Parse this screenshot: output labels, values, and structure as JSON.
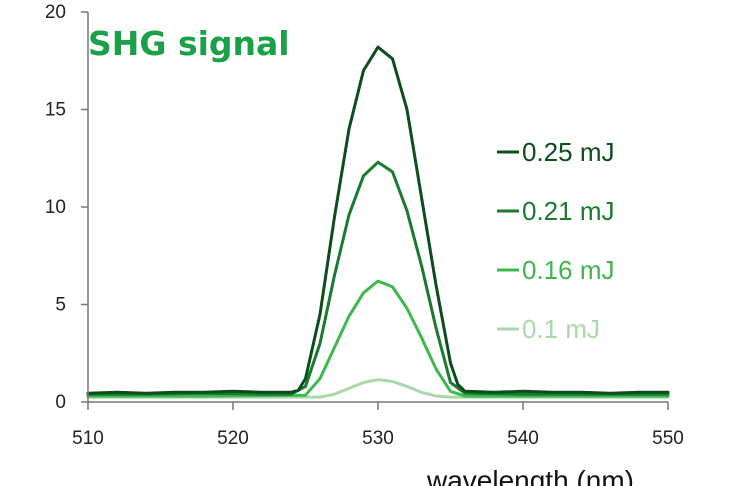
{
  "chart_data": {
    "type": "line",
    "title": "SHG signal",
    "xlabel": "wavelength (nm)",
    "ylabel": "",
    "xlim": [
      510,
      550
    ],
    "ylim": [
      0,
      20
    ],
    "xticks": [
      "510",
      "520",
      "530",
      "540",
      "550"
    ],
    "yticks": [
      "0",
      "5",
      "10",
      "15",
      "20"
    ],
    "grid": false,
    "legend_position": "right",
    "colors": {
      "title": "#1aa046",
      "axis": "#777777"
    },
    "series": [
      {
        "name": "0.25 mJ",
        "color": "#0c4d1c",
        "x": [
          510,
          512,
          514,
          516,
          518,
          520,
          522,
          524,
          524.5,
          525,
          526,
          527,
          528,
          529,
          530,
          531,
          532,
          533,
          534,
          535,
          535.5,
          536,
          538,
          540,
          542,
          544,
          546,
          548,
          550
        ],
        "y": [
          0.45,
          0.5,
          0.45,
          0.5,
          0.5,
          0.55,
          0.5,
          0.5,
          0.6,
          1.2,
          4.5,
          9.5,
          14.0,
          17.0,
          18.2,
          17.6,
          15.0,
          10.5,
          6.0,
          2.0,
          0.9,
          0.55,
          0.5,
          0.55,
          0.5,
          0.5,
          0.45,
          0.5,
          0.5
        ]
      },
      {
        "name": "0.21 mJ",
        "color": "#1a7a30",
        "x": [
          510,
          514,
          518,
          522,
          524,
          525,
          526,
          527,
          528,
          529,
          530,
          531,
          532,
          533,
          534,
          535,
          536,
          540,
          544,
          550
        ],
        "y": [
          0.4,
          0.4,
          0.45,
          0.4,
          0.4,
          0.8,
          3.0,
          6.5,
          9.6,
          11.6,
          12.3,
          11.8,
          9.8,
          7.0,
          3.8,
          1.0,
          0.45,
          0.4,
          0.4,
          0.4
        ]
      },
      {
        "name": "0.16 mJ",
        "color": "#3db84e",
        "x": [
          510,
          518,
          525,
          526,
          527,
          528,
          529,
          530,
          531,
          532,
          533,
          534,
          535,
          536,
          550
        ],
        "y": [
          0.3,
          0.3,
          0.35,
          1.2,
          2.8,
          4.4,
          5.6,
          6.2,
          5.9,
          4.8,
          3.3,
          1.7,
          0.55,
          0.3,
          0.3
        ]
      },
      {
        "name": "0.1 mJ",
        "color": "#a9d9a8",
        "x": [
          510,
          526,
          527,
          528,
          529,
          530,
          531,
          532,
          533,
          534,
          535,
          550
        ],
        "y": [
          0.25,
          0.25,
          0.4,
          0.7,
          1.0,
          1.15,
          1.05,
          0.8,
          0.5,
          0.3,
          0.25,
          0.25
        ]
      }
    ]
  }
}
